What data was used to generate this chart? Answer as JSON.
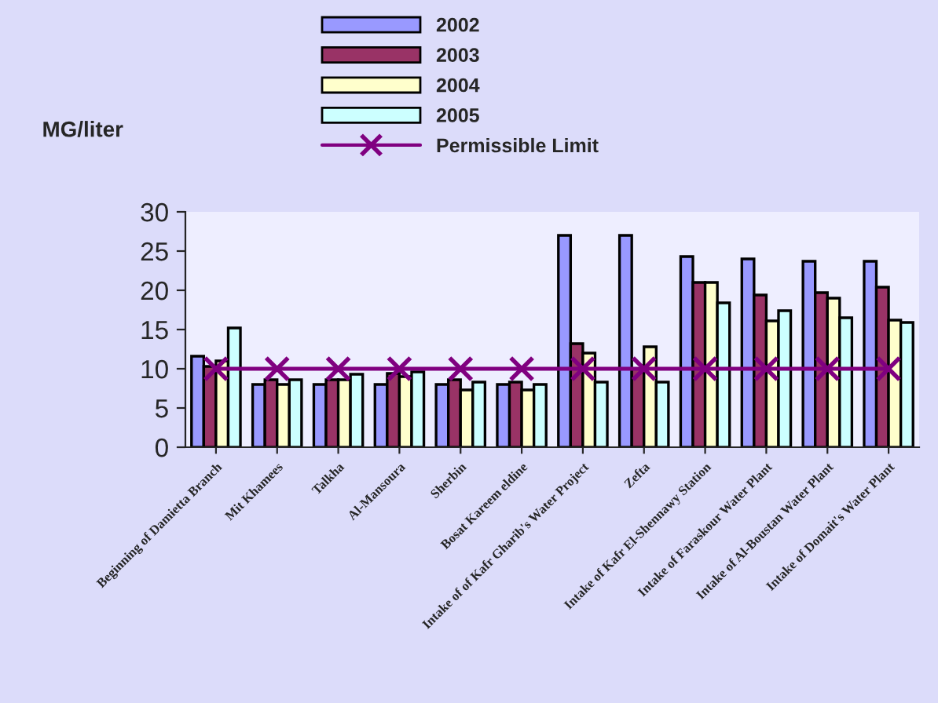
{
  "chart_data": {
    "type": "bar",
    "ylabel": "MG/liter",
    "categories": [
      "Beginning of Damietta Branch",
      "Mit Khamees",
      "Talkha",
      "Al-Mansoura",
      "Sherbin",
      "Bosat Kareem eldine",
      "Intake of of Kafr Gharib's Water Project",
      "Zefta",
      "Intake of Kafr El-Shennawy Station",
      "Intake of Faraskour Water Plant",
      "Intake of Al-Boustan Water Plant",
      "Intake of Domait's Water Plant"
    ],
    "series": [
      {
        "name": "2002",
        "color": "#9999ff",
        "values": [
          11.6,
          8,
          8,
          8,
          8,
          8,
          27,
          27,
          24.3,
          24,
          23.7,
          23.7
        ]
      },
      {
        "name": "2003",
        "color": "#993366",
        "values": [
          10.3,
          8.6,
          8.6,
          9.4,
          8.6,
          8.3,
          13.2,
          10,
          21,
          19.4,
          19.7,
          20.4
        ]
      },
      {
        "name": "2004",
        "color": "#ffffcc",
        "values": [
          11,
          8,
          8.6,
          9,
          7.3,
          7.3,
          12,
          12.8,
          21,
          16.1,
          19,
          16.2
        ]
      },
      {
        "name": "2005",
        "color": "#ccffff",
        "values": [
          15.2,
          8.6,
          9.3,
          9.6,
          8.3,
          8,
          8.3,
          8.3,
          18.4,
          17.4,
          16.5,
          15.9
        ]
      },
      {
        "name": "Permissible Limit",
        "type": "line",
        "color": "#800080",
        "marker": "cross",
        "values": [
          10,
          10,
          10,
          10,
          10,
          10,
          10,
          10,
          10,
          10,
          10,
          10
        ]
      }
    ],
    "ylim": [
      0,
      30
    ],
    "yticks": [
      0,
      5,
      10,
      15,
      20,
      25,
      30
    ],
    "grid": false,
    "legend": "top"
  }
}
